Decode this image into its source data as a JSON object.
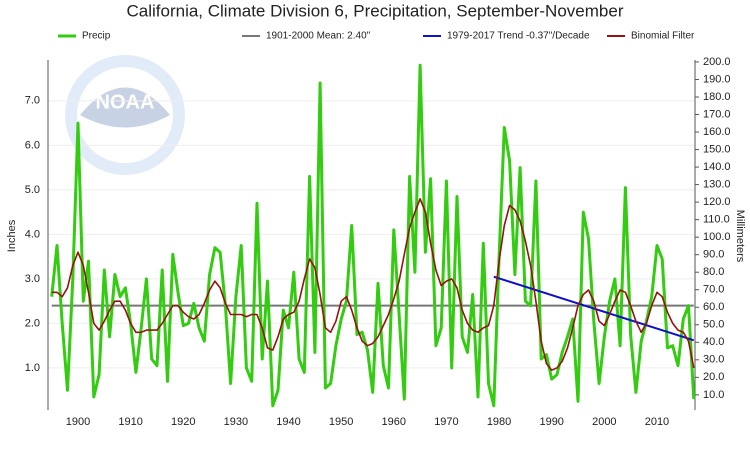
{
  "chart_data": {
    "type": "line",
    "title": "California, Climate Division 6, Precipitation, September-November",
    "ylabel": "Inches",
    "y2label": "Millimeters",
    "logo_text": "NOAA",
    "x": [
      1895,
      1896,
      1897,
      1898,
      1899,
      1900,
      1901,
      1902,
      1903,
      1904,
      1905,
      1906,
      1907,
      1908,
      1909,
      1910,
      1911,
      1912,
      1913,
      1914,
      1915,
      1916,
      1917,
      1918,
      1919,
      1920,
      1921,
      1922,
      1923,
      1924,
      1925,
      1926,
      1927,
      1928,
      1929,
      1930,
      1931,
      1932,
      1933,
      1934,
      1935,
      1936,
      1937,
      1938,
      1939,
      1940,
      1941,
      1942,
      1943,
      1944,
      1945,
      1946,
      1947,
      1948,
      1949,
      1950,
      1951,
      1952,
      1953,
      1954,
      1955,
      1956,
      1957,
      1958,
      1959,
      1960,
      1961,
      1962,
      1963,
      1964,
      1965,
      1966,
      1967,
      1968,
      1969,
      1970,
      1971,
      1972,
      1973,
      1974,
      1975,
      1976,
      1977,
      1978,
      1979,
      1980,
      1981,
      1982,
      1983,
      1984,
      1985,
      1986,
      1987,
      1988,
      1989,
      1990,
      1991,
      1992,
      1993,
      1994,
      1995,
      1996,
      1997,
      1998,
      1999,
      2000,
      2001,
      2002,
      2003,
      2004,
      2005,
      2006,
      2007,
      2008,
      2009,
      2010,
      2011,
      2012,
      2013,
      2014,
      2015,
      2016,
      2017
    ],
    "series": [
      {
        "name": "Precip",
        "color": "#33cc11",
        "values": [
          2.6,
          3.75,
          2.0,
          0.5,
          3.0,
          6.5,
          2.5,
          3.4,
          0.35,
          0.85,
          3.2,
          1.7,
          3.1,
          2.6,
          2.8,
          2.0,
          0.9,
          1.9,
          3.0,
          1.2,
          1.05,
          3.2,
          0.7,
          3.55,
          2.7,
          1.95,
          2.0,
          2.45,
          1.9,
          1.6,
          3.1,
          3.7,
          3.6,
          2.4,
          0.65,
          2.6,
          3.75,
          1.0,
          0.7,
          4.7,
          1.2,
          2.95,
          0.15,
          0.5,
          2.3,
          1.9,
          3.15,
          1.2,
          0.9,
          5.3,
          1.35,
          7.4,
          0.55,
          0.65,
          1.5,
          2.1,
          2.5,
          4.2,
          1.75,
          1.8,
          1.4,
          0.45,
          2.9,
          1.05,
          0.55,
          4.1,
          2.2,
          0.3,
          5.3,
          3.15,
          7.8,
          3.6,
          5.25,
          1.5,
          1.9,
          5.2,
          1.0,
          4.85,
          1.7,
          1.35,
          2.65,
          0.35,
          3.8,
          0.65,
          0.15,
          3.5,
          6.4,
          5.65,
          3.1,
          5.5,
          2.5,
          2.4,
          5.2,
          1.2,
          1.3,
          0.75,
          0.85,
          1.35,
          1.7,
          2.1,
          0.25,
          4.5,
          3.9,
          2.05,
          0.65,
          1.7,
          2.5,
          3.0,
          1.5,
          5.05,
          1.75,
          0.45,
          1.6,
          2.05,
          2.6,
          3.75,
          3.45,
          1.45,
          1.5,
          1.05,
          2.1,
          2.4,
          0.3
        ]
      },
      {
        "name": "Binomial Filter",
        "color": "#991111",
        "values": [
          2.7,
          2.7,
          2.6,
          2.8,
          3.3,
          3.6,
          3.3,
          2.7,
          2.0,
          1.85,
          2.05,
          2.3,
          2.5,
          2.5,
          2.3,
          2.0,
          1.8,
          1.8,
          1.85,
          1.85,
          1.85,
          2.0,
          2.2,
          2.4,
          2.4,
          2.25,
          2.15,
          2.1,
          2.2,
          2.45,
          2.75,
          2.95,
          2.8,
          2.45,
          2.2,
          2.2,
          2.2,
          2.15,
          2.2,
          2.2,
          1.9,
          1.45,
          1.4,
          1.7,
          2.1,
          2.2,
          2.25,
          2.5,
          3.0,
          3.45,
          3.25,
          2.65,
          1.9,
          1.8,
          2.05,
          2.5,
          2.6,
          2.3,
          1.9,
          1.6,
          1.5,
          1.55,
          1.7,
          1.95,
          2.2,
          2.55,
          2.95,
          3.55,
          4.15,
          4.5,
          4.8,
          4.5,
          3.8,
          3.2,
          2.85,
          2.95,
          3.0,
          2.8,
          2.3,
          2.0,
          1.85,
          1.8,
          1.9,
          1.95,
          2.4,
          3.4,
          4.2,
          4.65,
          4.55,
          4.3,
          3.85,
          3.3,
          2.5,
          1.6,
          1.1,
          0.95,
          1.0,
          1.15,
          1.45,
          1.9,
          2.4,
          2.65,
          2.75,
          2.5,
          2.05,
          1.95,
          2.2,
          2.5,
          2.75,
          2.7,
          2.4,
          2.05,
          1.8,
          2.0,
          2.4,
          2.7,
          2.6,
          2.25,
          2.0,
          1.85,
          1.8,
          1.6,
          1.0
        ]
      }
    ],
    "mean": {
      "name": "1901-2000 Mean: 2.40\"",
      "color": "#777777",
      "value": 2.4
    },
    "trend": {
      "name": "1979-2017 Trend -0.37\"/Decade",
      "color": "#1111cc",
      "x": [
        1979,
        2017
      ],
      "values": [
        3.05,
        1.62
      ]
    },
    "xlim": [
      1895,
      2017
    ],
    "xticks": [
      1900,
      1910,
      1920,
      1930,
      1940,
      1950,
      1960,
      1970,
      1980,
      1990,
      2000,
      2010
    ],
    "ylim": [
      0.1,
      7.85
    ],
    "yticks": [
      {
        "value": 1,
        "label": "1.0"
      },
      {
        "value": 2,
        "label": "2.0"
      },
      {
        "value": 3,
        "label": "3.0"
      },
      {
        "value": 4,
        "label": "4.0"
      },
      {
        "value": 5,
        "label": "5.0"
      },
      {
        "value": 6,
        "label": "6.0"
      },
      {
        "value": 7,
        "label": "7.0"
      }
    ],
    "y2lim": [
      2.5,
      199.4
    ],
    "y2ticks": [
      {
        "value": 10,
        "label": "10.0"
      },
      {
        "value": 20,
        "label": "20.0"
      },
      {
        "value": 30,
        "label": "30.0"
      },
      {
        "value": 40,
        "label": "40.0"
      },
      {
        "value": 50,
        "label": "50.0"
      },
      {
        "value": 60,
        "label": "60.0"
      },
      {
        "value": 70,
        "label": "70.0"
      },
      {
        "value": 80,
        "label": "80.0"
      },
      {
        "value": 90,
        "label": "90.0"
      },
      {
        "value": 100,
        "label": "100.0"
      },
      {
        "value": 110,
        "label": "110.0"
      },
      {
        "value": 120,
        "label": "120.0"
      },
      {
        "value": 130,
        "label": "130.0"
      },
      {
        "value": 140,
        "label": "140.0"
      },
      {
        "value": 150,
        "label": "150.0"
      },
      {
        "value": 160,
        "label": "160.0"
      },
      {
        "value": 170,
        "label": "170.0"
      },
      {
        "value": 180,
        "label": "180.0"
      },
      {
        "value": 190,
        "label": "190.0"
      },
      {
        "value": 200,
        "label": "200.0"
      }
    ],
    "grid": true
  }
}
